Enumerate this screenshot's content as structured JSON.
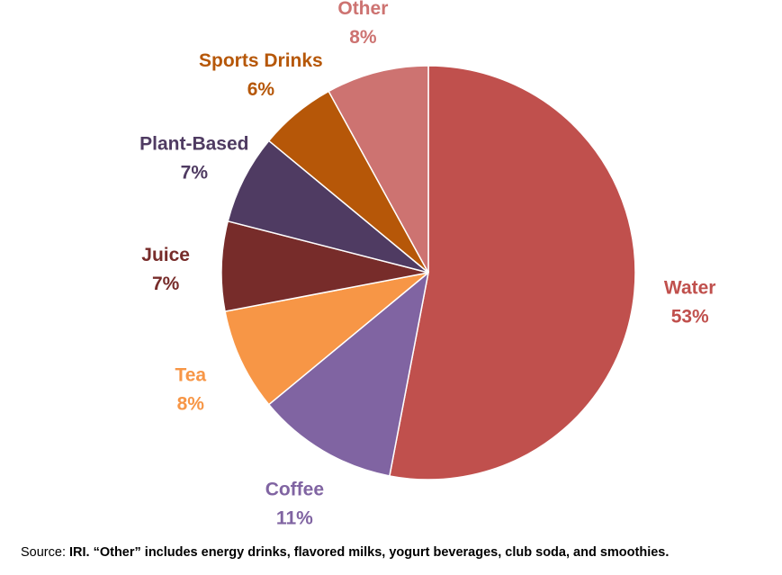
{
  "chart_data": {
    "type": "pie",
    "start_angle_deg": 0,
    "direction": "clockwise",
    "slices": [
      {
        "label": "Water",
        "value": 53,
        "display": "53%",
        "color": "#c0504d"
      },
      {
        "label": "Coffee",
        "value": 11,
        "display": "11%",
        "color": "#8064a2"
      },
      {
        "label": "Tea",
        "value": 8,
        "display": "8%",
        "color": "#f79646"
      },
      {
        "label": "Juice",
        "value": 7,
        "display": "7%",
        "color": "#772c2a"
      },
      {
        "label": "Plant-Based",
        "value": 7,
        "display": "7%",
        "color": "#4f3b62"
      },
      {
        "label": "Sports Drinks",
        "value": 6,
        "display": "6%",
        "color": "#b65708"
      },
      {
        "label": "Other",
        "value": 8,
        "display": "8%",
        "color": "#cd7371"
      }
    ]
  },
  "source": {
    "prefix": "Source: ",
    "text": "IRI. “Other” includes energy drinks, flavored milks, yogurt beverages, club soda, and smoothies."
  }
}
